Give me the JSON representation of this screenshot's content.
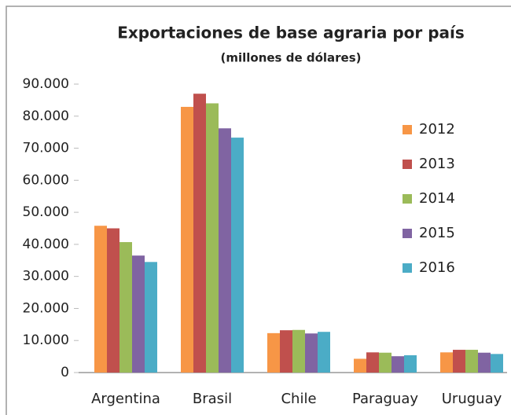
{
  "chart_data": {
    "type": "bar",
    "title": "Exportaciones de base agraria por país",
    "subtitle": "(millones de dólares)",
    "categories": [
      "Argentina",
      "Brasil",
      "Chile",
      "Paraguay",
      "Uruguay"
    ],
    "series": [
      {
        "name": "2012",
        "color": "#f79646",
        "values": [
          45800,
          82900,
          12300,
          4300,
          6300
        ]
      },
      {
        "name": "2013",
        "color": "#c0504d",
        "values": [
          45000,
          87000,
          13200,
          6300,
          7100
        ]
      },
      {
        "name": "2014",
        "color": "#9bbb59",
        "values": [
          40700,
          84000,
          13300,
          6200,
          7100
        ]
      },
      {
        "name": "2015",
        "color": "#8064a2",
        "values": [
          36500,
          76200,
          12200,
          5100,
          6200
        ]
      },
      {
        "name": "2016",
        "color": "#4bacc6",
        "values": [
          34500,
          73300,
          12700,
          5400,
          5800
        ]
      }
    ],
    "ylim": [
      0,
      90000
    ],
    "yticks": [
      0,
      {
        "value": 10000,
        "label": "10.000"
      },
      {
        "value": 20000,
        "label": "20.000"
      },
      {
        "value": 30000,
        "label": "30.000"
      },
      {
        "value": 40000,
        "label": "40.000"
      },
      {
        "value": 50000,
        "label": "50.000"
      },
      {
        "value": 60000,
        "label": "60.000"
      },
      {
        "value": 70000,
        "label": "70.000"
      },
      {
        "value": 80000,
        "label": "80.000"
      },
      {
        "value": 90000,
        "label": "90.000"
      }
    ],
    "legend": "right"
  }
}
